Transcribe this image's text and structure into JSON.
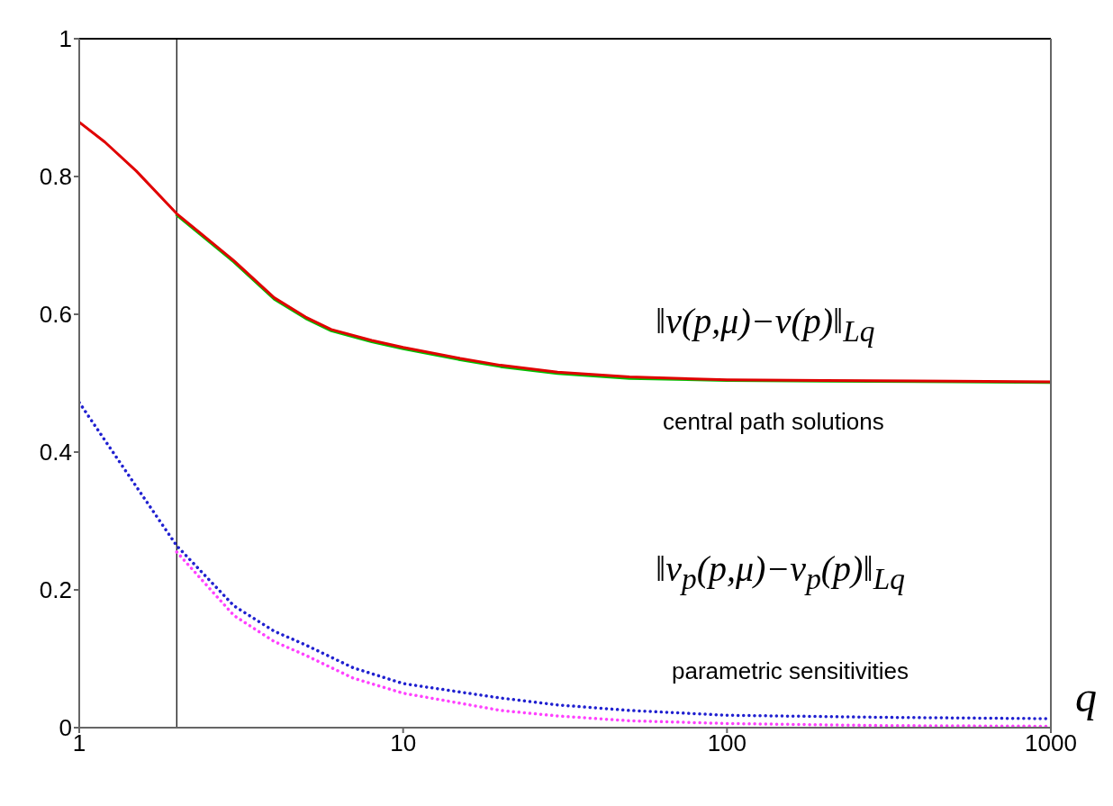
{
  "chart_data": {
    "type": "line",
    "xlabel": "q",
    "log": "x",
    "xlim": [
      1,
      1000
    ],
    "xticks": [
      1,
      10,
      100,
      1000
    ],
    "ylim": [
      0,
      1
    ],
    "yticks": [
      0,
      0.2,
      0.4,
      0.6,
      0.8,
      1
    ],
    "legend": false,
    "marker": "none",
    "series": [
      {
        "color": "#00c000",
        "line_style": "solid",
        "x": [
          2,
          3,
          4,
          5,
          6,
          8,
          10,
          15,
          20,
          30,
          50,
          100,
          200,
          500,
          1000
        ],
        "values": [
          0.744,
          0.676,
          0.622,
          0.594,
          0.576,
          0.56,
          0.55,
          0.534,
          0.524,
          0.514,
          0.507,
          0.504,
          0.503,
          0.502,
          0.501
        ]
      },
      {
        "color": "#e00000",
        "line_style": "solid",
        "x": [
          1,
          1.2,
          1.5,
          2,
          3,
          4,
          5,
          6,
          8,
          10,
          15,
          20,
          30,
          50,
          100,
          200,
          500,
          1000
        ],
        "values": [
          0.879,
          0.85,
          0.808,
          0.746,
          0.678,
          0.624,
          0.596,
          0.578,
          0.562,
          0.552,
          0.536,
          0.526,
          0.516,
          0.509,
          0.505,
          0.504,
          0.503,
          0.502
        ]
      },
      {
        "color": "#ff40ff",
        "line_style": "dotted",
        "x": [
          2,
          3,
          4,
          5,
          7,
          10,
          20,
          30,
          50,
          100,
          300,
          1000
        ],
        "values": [
          0.255,
          0.163,
          0.125,
          0.105,
          0.072,
          0.05,
          0.025,
          0.017,
          0.01,
          0.006,
          0.003,
          0.002
        ]
      },
      {
        "color": "#2020d0",
        "line_style": "dotted",
        "x": [
          1,
          1.5,
          2,
          3,
          4,
          5,
          7,
          10,
          20,
          30,
          50,
          100,
          300,
          1000
        ],
        "values": [
          0.472,
          0.35,
          0.264,
          0.177,
          0.14,
          0.12,
          0.087,
          0.064,
          0.043,
          0.033,
          0.025,
          0.018,
          0.015,
          0.013
        ]
      }
    ],
    "ref_lines": [
      {
        "axis": "x",
        "value": 2,
        "color": "#000000"
      }
    ],
    "annotations": [
      "‖v(p,μ)−v(p)‖$_{Lq}$",
      "central path solutions",
      "‖v$_{p}$(p,μ)−v$_{p}$(p)‖$_{Lq}$",
      "parametric sensitivities"
    ]
  }
}
